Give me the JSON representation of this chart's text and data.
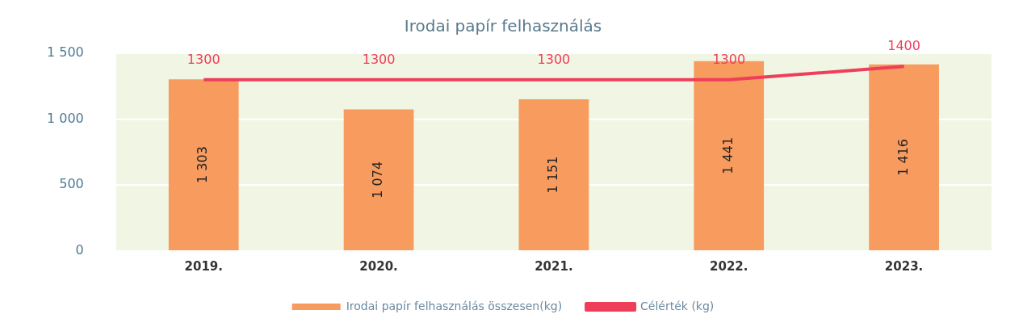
{
  "chart_data": {
    "type": "bar",
    "title": "Irodai papír felhasználás",
    "categories": [
      "2019.",
      "2020.",
      "2021.",
      "2022.",
      "2023."
    ],
    "series": [
      {
        "name": "Irodai papír felhasználás összesen(kg)",
        "color": "#f79b5e",
        "values": [
          1303,
          1074,
          1151,
          1441,
          1416
        ],
        "value_labels": [
          "1 303",
          "1 074",
          "1 151",
          "1 441",
          "1 416"
        ]
      },
      {
        "name": "Célérték (kg)",
        "type": "line",
        "color": "#ef3e5a",
        "values": [
          1300,
          1300,
          1300,
          1300,
          1400
        ],
        "value_labels": [
          "1300",
          "1300",
          "1300",
          "1300",
          "1400"
        ]
      }
    ],
    "ylim": [
      0,
      1500
    ],
    "yticks": [
      {
        "value": 0,
        "label": "0"
      },
      {
        "value": 500,
        "label": "500"
      },
      {
        "value": 1000,
        "label": "1 000"
      },
      {
        "value": 1500,
        "label": "1 500"
      }
    ],
    "grid": "y",
    "legend": "bottom",
    "marker": "none"
  }
}
